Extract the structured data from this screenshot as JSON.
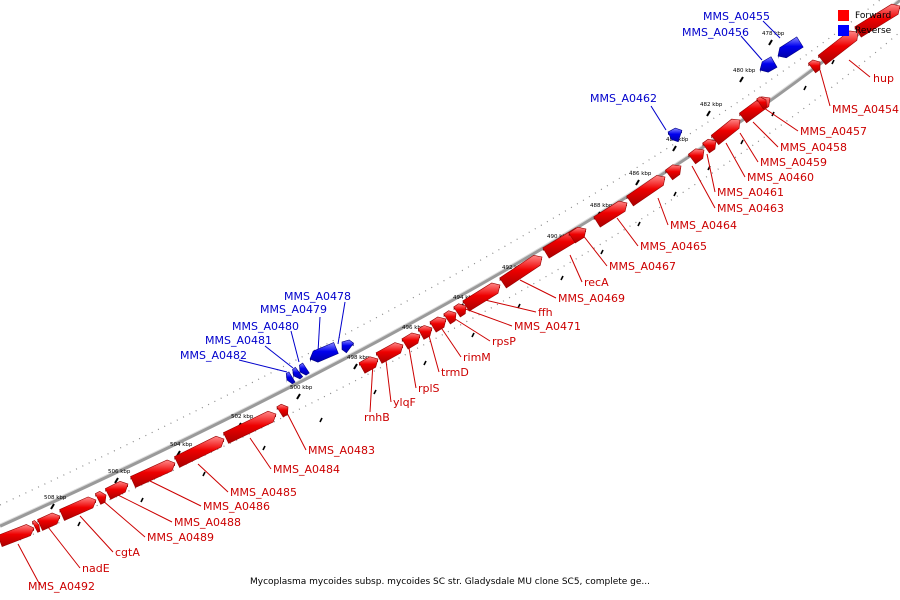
{
  "caption": "Mycoplasma mycoides subsp. mycoides SC str. Gladysdale MU clone SC5, complete ge...",
  "legend": [
    {
      "label": "Forward",
      "color": "#ff0000"
    },
    {
      "label": "Reverse",
      "color": "#0000ff"
    }
  ],
  "colors": {
    "forward": "#ff0000",
    "reverse": "#0000ff"
  },
  "ticks": [
    "478 kbp",
    "480 kbp",
    "482 kbp",
    "484 kbp",
    "486 kbp",
    "488 kbp",
    "490 kbp",
    "492 kbp",
    "494 kbp",
    "496 kbp",
    "498 kbp",
    "500 kbp",
    "502 kbp",
    "504 kbp",
    "506 kbp",
    "508 kbp"
  ],
  "genes": [
    {
      "name": "hup",
      "strand": "forward"
    },
    {
      "name": "MMS_A0454",
      "strand": "forward"
    },
    {
      "name": "MMS_A0455",
      "strand": "reverse"
    },
    {
      "name": "MMS_A0456",
      "strand": "reverse"
    },
    {
      "name": "MMS_A0457",
      "strand": "forward"
    },
    {
      "name": "MMS_A0458",
      "strand": "forward"
    },
    {
      "name": "MMS_A0459",
      "strand": "forward"
    },
    {
      "name": "MMS_A0460",
      "strand": "forward"
    },
    {
      "name": "MMS_A0461",
      "strand": "forward"
    },
    {
      "name": "MMS_A0462",
      "strand": "reverse"
    },
    {
      "name": "MMS_A0463",
      "strand": "forward"
    },
    {
      "name": "MMS_A0464",
      "strand": "forward"
    },
    {
      "name": "MMS_A0465",
      "strand": "forward"
    },
    {
      "name": "MMS_A0467",
      "strand": "forward"
    },
    {
      "name": "recA",
      "strand": "forward"
    },
    {
      "name": "MMS_A0469",
      "strand": "forward"
    },
    {
      "name": "ffh",
      "strand": "forward"
    },
    {
      "name": "MMS_A0471",
      "strand": "forward"
    },
    {
      "name": "rpsP",
      "strand": "forward"
    },
    {
      "name": "rimM",
      "strand": "forward"
    },
    {
      "name": "trmD",
      "strand": "forward"
    },
    {
      "name": "rplS",
      "strand": "forward"
    },
    {
      "name": "ylqF",
      "strand": "forward"
    },
    {
      "name": "rnhB",
      "strand": "forward"
    },
    {
      "name": "MMS_A0478",
      "strand": "reverse"
    },
    {
      "name": "MMS_A0479",
      "strand": "reverse"
    },
    {
      "name": "MMS_A0480",
      "strand": "reverse"
    },
    {
      "name": "MMS_A0481",
      "strand": "reverse"
    },
    {
      "name": "MMS_A0482",
      "strand": "reverse"
    },
    {
      "name": "MMS_A0483",
      "strand": "forward"
    },
    {
      "name": "MMS_A0484",
      "strand": "forward"
    },
    {
      "name": "MMS_A0485",
      "strand": "forward"
    },
    {
      "name": "MMS_A0486",
      "strand": "forward"
    },
    {
      "name": "MMS_A0488",
      "strand": "forward"
    },
    {
      "name": "MMS_A0489",
      "strand": "forward"
    },
    {
      "name": "cgtA",
      "strand": "forward"
    },
    {
      "name": "nadE",
      "strand": "forward"
    },
    {
      "name": "MMS_A0492",
      "strand": "forward"
    }
  ]
}
